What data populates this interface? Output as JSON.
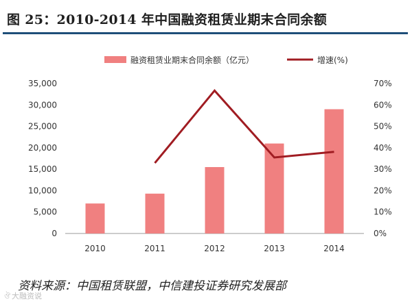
{
  "figure_title": "图 25：2010-2014 年中国融资租赁业期末合同余额",
  "source": "资料来源：中国租赁联盟，中信建投证券研究发展部",
  "watermark": "大融资说",
  "colors": {
    "bar": "#f08080",
    "line": "#a01c22",
    "axis_line": "#999999",
    "tick_text": "#333333",
    "title_rule": "#1e4e79"
  },
  "chart_data": {
    "type": "bar",
    "categories": [
      "2010",
      "2011",
      "2012",
      "2013",
      "2014"
    ],
    "series": [
      {
        "name": "融资租赁业期末合同余额（亿元）",
        "type": "bar",
        "axis": "left",
        "values": [
          7000,
          9300,
          15500,
          21000,
          29000
        ]
      },
      {
        "name": "增速(%)",
        "type": "line",
        "axis": "right",
        "values": [
          null,
          32.9,
          66.7,
          35.5,
          38.1
        ]
      }
    ],
    "y_left": {
      "ylim": [
        0,
        35000
      ],
      "ticks": [
        "0",
        "5,000",
        "10,000",
        "15,000",
        "20,000",
        "25,000",
        "30,000",
        "35,000"
      ]
    },
    "y_right": {
      "ylim": [
        0,
        70
      ],
      "ticks": [
        "0%",
        "10%",
        "20%",
        "30%",
        "40%",
        "50%",
        "60%",
        "70%"
      ]
    },
    "legend": "top"
  }
}
